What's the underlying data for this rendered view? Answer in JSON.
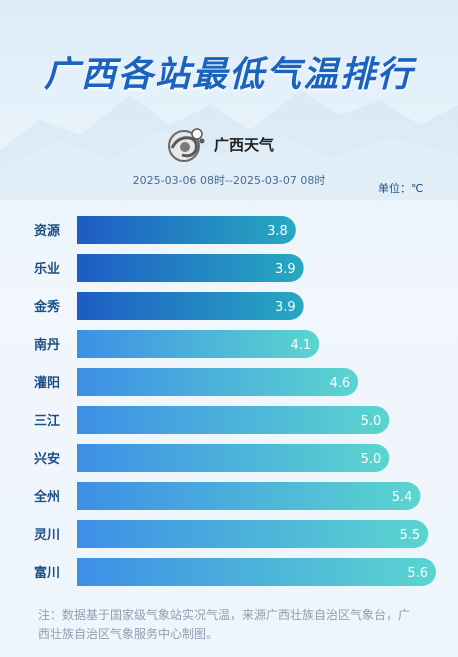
{
  "header": {
    "title": "广西各站最低气温排行",
    "logo_text": "广西天气",
    "period": "2025-03-06 08时--2025-03-07 08时",
    "unit": "单位：℃"
  },
  "chart_data": {
    "type": "bar",
    "orientation": "horizontal",
    "categories": [
      "资源",
      "乐业",
      "金秀",
      "南丹",
      "灌阳",
      "三江",
      "兴安",
      "全州",
      "灵川",
      "富川"
    ],
    "values": [
      3.8,
      3.9,
      3.9,
      4.1,
      4.6,
      5.0,
      5.0,
      5.4,
      5.5,
      5.6
    ],
    "value_labels": [
      "3.8",
      "3.9",
      "3.9",
      "4.1",
      "4.6",
      "5.0",
      "5.0",
      "5.4",
      "5.5",
      "5.6"
    ],
    "unit": "℃",
    "colors": {
      "top3_start": "#1e5cc4",
      "top3_end": "#27a9c1",
      "rest_start": "#3d8fe6",
      "rest_end": "#5bd5cf",
      "label": "#1d4f86"
    }
  },
  "footer": {
    "note": "注：数据基于国家级气象站实况气温，来源广西壮族自治区气象台，广西壮族自治区气象服务中心制图。"
  }
}
